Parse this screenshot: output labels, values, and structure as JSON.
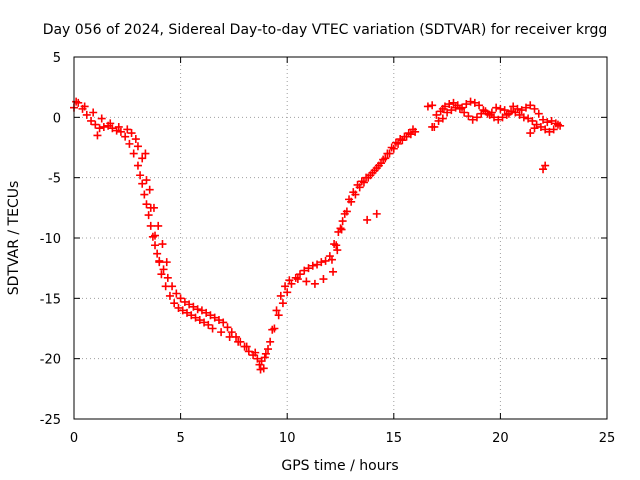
{
  "chart_data": {
    "type": "scatter",
    "title": "Day 056 of 2024, Sidereal Day-to-day VTEC variation (SDTVAR) for receiver krgg",
    "xlabel": "GPS time / hours",
    "ylabel": "SDTVAR / TECUs",
    "xlim": [
      0,
      25
    ],
    "ylim": [
      -25,
      5
    ],
    "xticks": [
      0,
      5,
      10,
      15,
      20,
      25
    ],
    "yticks": [
      5,
      0,
      -5,
      -10,
      -15,
      -20,
      -25
    ],
    "xtick_labels": [
      "0",
      "5",
      "10",
      "15",
      "20",
      "25"
    ],
    "ytick_labels": [
      "5",
      "0",
      "-5",
      "-10",
      "-15",
      "-20",
      "-25"
    ],
    "grid": true,
    "marker": "+",
    "series": [
      {
        "name": "SDTVAR",
        "color": "#ff0000",
        "x": [
          0.0,
          0.2,
          0.4,
          0.6,
          0.8,
          1.0,
          1.2,
          1.4,
          1.6,
          1.8,
          2.0,
          2.2,
          2.4,
          2.6,
          2.8,
          3.0,
          3.1,
          3.2,
          3.3,
          3.4,
          3.5,
          3.6,
          3.7,
          3.8,
          3.9,
          4.0,
          4.2,
          4.4,
          4.6,
          4.8,
          5.0,
          5.2,
          5.4,
          5.6,
          5.8,
          6.0,
          6.2,
          6.4,
          6.6,
          6.8,
          7.0,
          7.2,
          7.4,
          7.6,
          7.8,
          8.0,
          8.2,
          8.4,
          8.6,
          8.8,
          9.0,
          9.2,
          9.4,
          9.6,
          9.8,
          10.0,
          10.2,
          10.4,
          10.6,
          10.8,
          11.0,
          11.2,
          11.4,
          11.6,
          11.8,
          12.0,
          12.2,
          12.4,
          12.6,
          12.8,
          13.0,
          13.2,
          13.4,
          13.6,
          13.8,
          14.0,
          14.2,
          14.4,
          14.6,
          14.8,
          15.0,
          15.2,
          15.4,
          15.6,
          15.8,
          16.0,
          16.8,
          17.0,
          17.2,
          17.4,
          17.6,
          17.8,
          18.0,
          18.2,
          18.4,
          18.6,
          18.8,
          19.0,
          19.2,
          19.4,
          19.6,
          19.8,
          20.0,
          20.2,
          20.4,
          20.6,
          20.8,
          21.0,
          21.2,
          21.4,
          21.6,
          21.8,
          22.0,
          22.2,
          22.4,
          22.6,
          22.8,
          0.1,
          0.5,
          0.9,
          1.3,
          1.7,
          2.1,
          2.5,
          2.7,
          2.9,
          3.0,
          3.2,
          3.4,
          3.6,
          3.8,
          4.0,
          4.1,
          4.3,
          4.5,
          4.7,
          4.9,
          5.1,
          5.3,
          5.5,
          5.7,
          5.9,
          6.1,
          6.3,
          6.5,
          6.9,
          7.3,
          7.7,
          8.1,
          8.5,
          8.7,
          8.9,
          9.1,
          9.3,
          9.5,
          9.7,
          9.9,
          10.1,
          10.5,
          10.9,
          11.3,
          11.7,
          12.1,
          12.3,
          12.5,
          12.7,
          12.9,
          13.1,
          13.3,
          13.5,
          13.7,
          13.9,
          14.1,
          14.3,
          14.5,
          14.7,
          14.9,
          15.1,
          15.3,
          15.5,
          15.7,
          15.9,
          16.9,
          17.1,
          17.3,
          17.5,
          17.7,
          17.9,
          18.1,
          18.3,
          18.5,
          18.7,
          18.9,
          19.1,
          19.3,
          19.5,
          19.7,
          19.9,
          20.1,
          20.3,
          20.5,
          20.7,
          20.9,
          21.1,
          21.3,
          21.5,
          21.7,
          21.9,
          22.1,
          22.3,
          22.5,
          22.7,
          1.1,
          3.35,
          3.55,
          3.75,
          3.95,
          4.15,
          4.35,
          8.75,
          8.95,
          12.15,
          12.35,
          12.55,
          13.75,
          14.2,
          16.6,
          16.8,
          17.3,
          22.1,
          22.0,
          21.6,
          21.4
        ],
        "y": [
          0.8,
          1.2,
          0.7,
          0.2,
          -0.3,
          -0.6,
          -0.9,
          -0.8,
          -0.7,
          -0.9,
          -1.1,
          -1.2,
          -1.6,
          -2.2,
          -3.0,
          -4.0,
          -4.8,
          -5.5,
          -6.4,
          -7.2,
          -8.1,
          -9.0,
          -9.9,
          -10.6,
          -11.3,
          -11.9,
          -12.6,
          -13.3,
          -14.0,
          -14.6,
          -15.0,
          -15.3,
          -15.5,
          -15.7,
          -15.9,
          -16.0,
          -16.2,
          -16.4,
          -16.6,
          -16.8,
          -17.0,
          -17.4,
          -17.8,
          -18.2,
          -18.6,
          -19.0,
          -19.4,
          -19.7,
          -20.0,
          -20.2,
          -19.6,
          -18.6,
          -17.5,
          -16.4,
          -15.4,
          -14.5,
          -13.8,
          -13.3,
          -13.0,
          -12.7,
          -12.5,
          -12.3,
          -12.2,
          -12.0,
          -11.9,
          -11.5,
          -10.5,
          -9.5,
          -8.6,
          -7.8,
          -7.0,
          -6.4,
          -5.8,
          -5.4,
          -5.0,
          -4.6,
          -4.2,
          -3.8,
          -3.4,
          -3.0,
          -2.6,
          -2.2,
          -1.9,
          -1.6,
          -1.4,
          -1.2,
          -0.8,
          0.2,
          0.5,
          0.9,
          1.1,
          1.2,
          1.0,
          0.8,
          1.1,
          1.3,
          1.2,
          1.0,
          0.6,
          0.3,
          0.4,
          0.8,
          0.7,
          0.6,
          0.3,
          0.9,
          0.7,
          0.6,
          0.8,
          1.0,
          0.7,
          0.3,
          -0.2,
          -0.4,
          -0.3,
          -0.5,
          -0.7,
          1.3,
          0.9,
          0.4,
          -0.1,
          -0.5,
          -0.8,
          -1.0,
          -1.3,
          -1.8,
          -2.4,
          -3.4,
          -5.2,
          -7.5,
          -9.8,
          -12.0,
          -13.0,
          -14.0,
          -14.8,
          -15.4,
          -15.8,
          -16.0,
          -16.2,
          -16.4,
          -16.6,
          -16.8,
          -17.0,
          -17.2,
          -17.5,
          -17.8,
          -18.2,
          -18.6,
          -19.0,
          -19.5,
          -20.5,
          -20.8,
          -19.2,
          -17.6,
          -16.0,
          -14.8,
          -14.0,
          -13.5,
          -13.4,
          -13.6,
          -13.8,
          -13.4,
          -11.8,
          -10.6,
          -9.2,
          -8.0,
          -6.8,
          -6.2,
          -5.6,
          -5.3,
          -5.0,
          -4.8,
          -4.4,
          -4.0,
          -3.5,
          -3.0,
          -2.5,
          -2.1,
          -1.8,
          -1.6,
          -1.3,
          -1.0,
          -0.8,
          -0.3,
          -0.1,
          0.4,
          0.6,
          0.8,
          0.7,
          0.4,
          0.1,
          -0.2,
          0.0,
          0.3,
          0.5,
          0.2,
          0.0,
          -0.2,
          0.0,
          0.2,
          0.5,
          0.4,
          0.2,
          0.0,
          -0.1,
          -0.3,
          -0.6,
          -0.8,
          -1.0,
          -1.2,
          -1.0,
          -0.6,
          -1.5,
          -3.0,
          -6.0,
          -7.5,
          -9.0,
          -10.5,
          -12.0,
          -20.9,
          -19.9,
          -12.8,
          -11.0,
          -9.3,
          -8.5,
          -8.0,
          0.9,
          1.0,
          0.7,
          -4.0,
          -4.3,
          -0.9,
          -1.3
        ]
      }
    ]
  }
}
